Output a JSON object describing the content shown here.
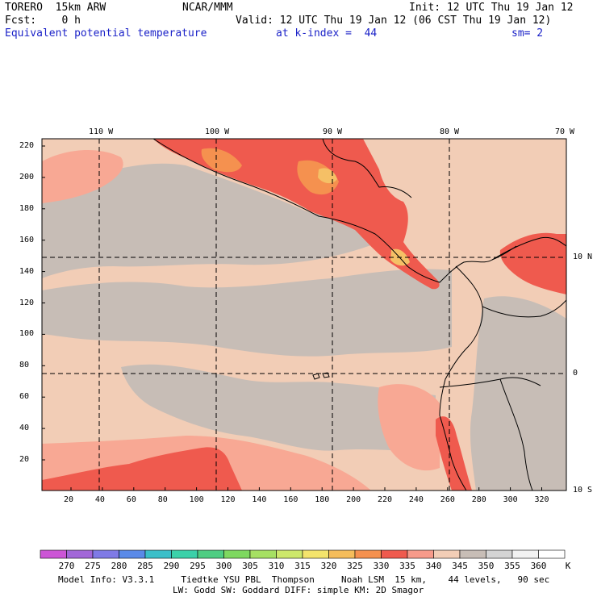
{
  "header": {
    "model": "TORERO  15km ARW",
    "org": "NCAR/MMM",
    "init": "Init: 12 UTC Thu 19 Jan 12",
    "fcst": "Fcst:    0 h",
    "valid": "Valid: 12 UTC Thu 19 Jan 12 (06 CST Thu 19 Jan 12)",
    "field": "Equivalent potential temperature",
    "level": "at k-index =  44",
    "smooth": "sm= 2"
  },
  "map": {
    "lon_labels": [
      "110 W",
      "100 W",
      "90 W",
      "80 W",
      "70 W"
    ],
    "lat_labels": [
      "10 N",
      "0",
      "10 S"
    ],
    "y_ticks": [
      "220",
      "200",
      "180",
      "160",
      "140",
      "120",
      "100",
      "80",
      "60",
      "40",
      "20"
    ],
    "x_ticks": [
      "20",
      "40",
      "60",
      "80",
      "100",
      "120",
      "140",
      "160",
      "180",
      "200",
      "220",
      "240",
      "260",
      "280",
      "300",
      "320"
    ],
    "colors": {
      "ocean_warm": "#f2cdb6",
      "ocean_cool": "#c7bdb6",
      "warm_pink": "#f8a894",
      "hot": "#ef5a4e",
      "hotter": "#f5864f",
      "hottest": "#f5c066"
    }
  },
  "colorbar": {
    "labels": [
      "270",
      "275",
      "280",
      "285",
      "290",
      "295",
      "300",
      "305",
      "310",
      "315",
      "320",
      "325",
      "330",
      "335",
      "340",
      "345",
      "350",
      "355",
      "360"
    ],
    "unit": "K",
    "colors": [
      "#cc55d6",
      "#a266d8",
      "#7f7ae6",
      "#5a8ae8",
      "#3bbfc9",
      "#3bd1a9",
      "#4ecd82",
      "#7ed860",
      "#a6e063",
      "#cde86b",
      "#f4e46c",
      "#f5bd5b",
      "#f5914f",
      "#ef5a4e",
      "#f79a8a",
      "#f2cdb6",
      "#c7bdb6",
      "#d4d4d4",
      "#f2f2f2",
      "#ffffff"
    ]
  },
  "footer": {
    "line1": "Model Info: V3.3.1     Tiedtke YSU PBL  Thompson     Noah LSM  15 km,    44 levels,   90 sec",
    "line2": "LW: Godd SW: Goddard DIFF: simple KM: 2D Smagor"
  }
}
